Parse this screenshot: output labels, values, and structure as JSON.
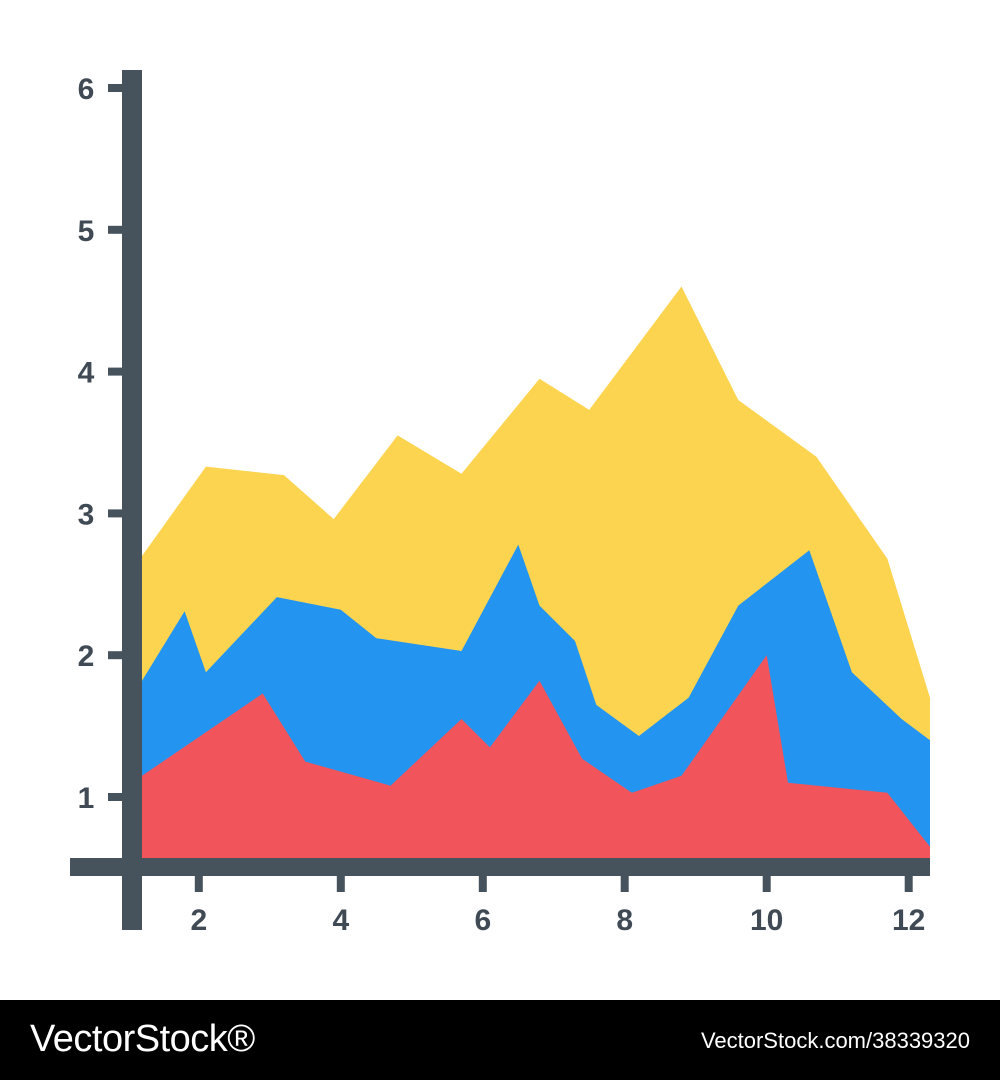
{
  "chart_data": {
    "type": "area",
    "stacked": true,
    "x_ticks": [
      2,
      4,
      6,
      8,
      10,
      12
    ],
    "y_ticks": [
      1,
      2,
      3,
      4,
      5,
      6
    ],
    "xlim": [
      1.2,
      12.3
    ],
    "ylim": [
      0.57,
      6
    ],
    "baseline": 0.57,
    "grid": false,
    "legend": "none",
    "series": [
      {
        "color": "#f2545b",
        "points": [
          [
            1.2,
            1.15
          ],
          [
            2.9,
            1.73
          ],
          [
            3.5,
            1.25
          ],
          [
            4.7,
            1.08
          ],
          [
            5.7,
            1.55
          ],
          [
            6.1,
            1.35
          ],
          [
            6.8,
            1.82
          ],
          [
            7.4,
            1.27
          ],
          [
            8.1,
            1.03
          ],
          [
            8.8,
            1.15
          ],
          [
            10.0,
            2.0
          ],
          [
            10.3,
            1.1
          ],
          [
            11.7,
            1.03
          ],
          [
            12.3,
            0.65
          ]
        ]
      },
      {
        "color": "#2394f0",
        "points": [
          [
            1.2,
            1.82
          ],
          [
            1.8,
            2.31
          ],
          [
            2.1,
            1.88
          ],
          [
            3.1,
            2.41
          ],
          [
            4.0,
            2.32
          ],
          [
            4.5,
            2.12
          ],
          [
            5.7,
            2.03
          ],
          [
            6.5,
            2.78
          ],
          [
            6.8,
            2.35
          ],
          [
            7.3,
            2.1
          ],
          [
            7.6,
            1.65
          ],
          [
            8.2,
            1.43
          ],
          [
            8.9,
            1.7
          ],
          [
            9.6,
            2.35
          ],
          [
            10.6,
            2.74
          ],
          [
            11.2,
            1.88
          ],
          [
            11.9,
            1.55
          ],
          [
            12.3,
            1.4
          ]
        ]
      },
      {
        "color": "#fcd450",
        "points": [
          [
            1.2,
            2.7
          ],
          [
            2.1,
            3.33
          ],
          [
            3.2,
            3.27
          ],
          [
            3.9,
            2.96
          ],
          [
            4.8,
            3.55
          ],
          [
            5.7,
            3.28
          ],
          [
            6.8,
            3.95
          ],
          [
            7.5,
            3.73
          ],
          [
            8.8,
            4.6
          ],
          [
            9.6,
            3.8
          ],
          [
            10.7,
            3.4
          ],
          [
            11.7,
            2.68
          ],
          [
            12.3,
            1.7
          ]
        ]
      }
    ]
  },
  "footer": {
    "brand": "VectorStock®",
    "stock_id": "VectorStock.com/38339320"
  }
}
